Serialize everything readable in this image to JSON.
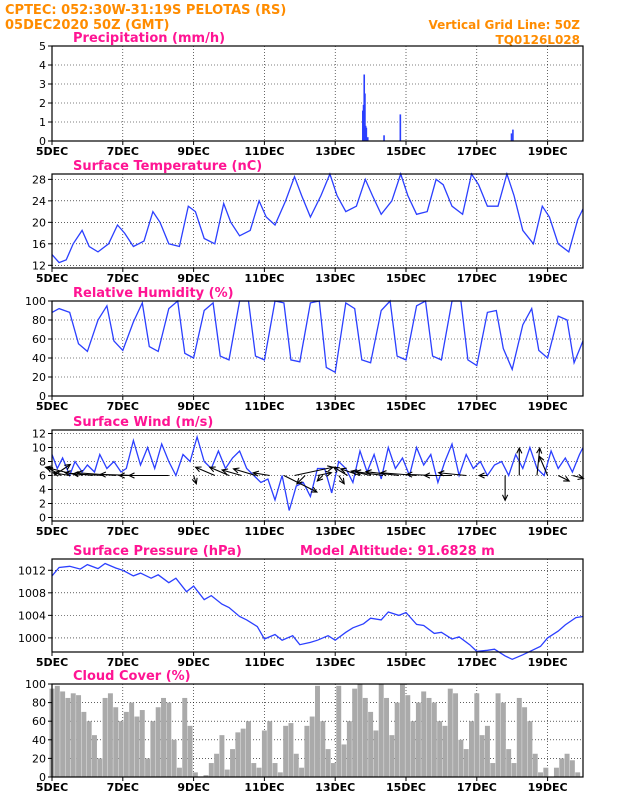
{
  "header": {
    "line1": "CPTEC:   052:30W-31:19S   PELOTAS (RS)",
    "line2": "05DEC2020 50Z (GMT)",
    "grid_note": "Vertical Grid Line: 50Z",
    "code": "TQ0126L028"
  },
  "colors": {
    "header": "#ff8c00",
    "title": "#ff1493",
    "line": "#2b3fff",
    "cloud": "#aaaaaa",
    "arrow": "#000000"
  },
  "chart_data": [
    {
      "type": "bar",
      "title": "Precipitation (mm/h)",
      "ylim": [
        0,
        5
      ],
      "yticks": [
        0,
        1,
        2,
        3,
        4,
        5
      ],
      "x_tick_labels": [
        "5DEC",
        "7DEC",
        "9DEC",
        "11DEC",
        "13DEC",
        "15DEC",
        "17DEC",
        "19DEC"
      ],
      "x_range_days": [
        5,
        20
      ],
      "series": [
        {
          "x": [
            13.78,
            13.8,
            13.82,
            13.84,
            13.86,
            13.88,
            13.92,
            14.38,
            14.84,
            17.98,
            18.02
          ],
          "values": [
            1.6,
            1.9,
            3.5,
            2.5,
            0.8,
            0.7,
            0.2,
            0.3,
            1.4,
            0.4,
            0.6
          ]
        }
      ]
    },
    {
      "type": "line",
      "title": "Surface Temperature (nC)",
      "ylim": [
        11.5,
        29
      ],
      "yticks": [
        12,
        16,
        20,
        24,
        28
      ],
      "x_tick_labels": [
        "5DEC",
        "7DEC",
        "9DEC",
        "11DEC",
        "13DEC",
        "15DEC",
        "17DEC",
        "19DEC"
      ],
      "x_range_days": [
        5,
        20
      ],
      "series": [
        {
          "x": [
            5.0,
            5.2,
            5.4,
            5.6,
            5.85,
            6.05,
            6.3,
            6.6,
            6.85,
            7.05,
            7.3,
            7.6,
            7.85,
            8.05,
            8.3,
            8.6,
            8.85,
            9.05,
            9.3,
            9.6,
            9.85,
            10.05,
            10.3,
            10.6,
            10.85,
            11.05,
            11.3,
            11.6,
            11.85,
            12.05,
            12.3,
            12.6,
            12.85,
            13.05,
            13.3,
            13.6,
            13.85,
            14.05,
            14.3,
            14.6,
            14.85,
            15.05,
            15.3,
            15.6,
            15.85,
            16.05,
            16.3,
            16.6,
            16.85,
            17.05,
            17.3,
            17.6,
            17.85,
            18.05,
            18.3,
            18.6,
            18.85,
            19.05,
            19.3,
            19.6,
            19.85,
            20.0
          ],
          "values": [
            14,
            12.5,
            13,
            16,
            18.5,
            15.5,
            14.5,
            16,
            19.5,
            18,
            15.5,
            16.5,
            22,
            20,
            16,
            15.5,
            23,
            22,
            17,
            16,
            23.5,
            20,
            17.5,
            18.5,
            24,
            21,
            19.5,
            24,
            28.5,
            25,
            21,
            25,
            29,
            25,
            22,
            23,
            28,
            25,
            21.5,
            24,
            29,
            25,
            21.5,
            22,
            28,
            27,
            23,
            21.5,
            29,
            27,
            23,
            23,
            29,
            25,
            18.5,
            16,
            23,
            21,
            16,
            14.5,
            20.5,
            22.5
          ]
        }
      ]
    },
    {
      "type": "line",
      "title": "Relative Humidity (%)",
      "ylim": [
        0,
        100
      ],
      "yticks": [
        0,
        20,
        40,
        60,
        80,
        100
      ],
      "x_tick_labels": [
        "5DEC",
        "7DEC",
        "9DEC",
        "11DEC",
        "13DEC",
        "15DEC",
        "17DEC",
        "19DEC"
      ],
      "x_range_days": [
        5,
        20
      ],
      "series": [
        {
          "x": [
            5.0,
            5.2,
            5.5,
            5.75,
            6.0,
            6.3,
            6.55,
            6.75,
            7.0,
            7.3,
            7.55,
            7.75,
            8.0,
            8.3,
            8.55,
            8.75,
            9.0,
            9.3,
            9.55,
            9.75,
            10.0,
            10.3,
            10.55,
            10.75,
            11.0,
            11.3,
            11.55,
            11.75,
            12.0,
            12.3,
            12.55,
            12.75,
            13.0,
            13.3,
            13.55,
            13.75,
            14.0,
            14.3,
            14.55,
            14.75,
            15.0,
            15.3,
            15.55,
            15.75,
            16.0,
            16.3,
            16.55,
            16.75,
            17.0,
            17.3,
            17.55,
            17.75,
            18.0,
            18.3,
            18.55,
            18.75,
            19.0,
            19.3,
            19.55,
            19.75,
            20.0
          ],
          "values": [
            88,
            92,
            88,
            55,
            47,
            80,
            95,
            58,
            48,
            78,
            98,
            52,
            47,
            92,
            100,
            45,
            40,
            90,
            98,
            42,
            38,
            100,
            100,
            42,
            38,
            100,
            98,
            38,
            36,
            98,
            100,
            30,
            25,
            98,
            92,
            38,
            35,
            90,
            100,
            42,
            38,
            95,
            100,
            42,
            38,
            100,
            100,
            38,
            32,
            88,
            90,
            50,
            28,
            75,
            92,
            48,
            40,
            84,
            80,
            35,
            58
          ]
        }
      ]
    },
    {
      "type": "line",
      "title": "Surface Wind (m/s)",
      "ylim": [
        -0.5,
        12.5
      ],
      "yticks": [
        0,
        2,
        4,
        6,
        8,
        10,
        12
      ],
      "x_tick_labels": [
        "5DEC",
        "7DEC",
        "9DEC",
        "11DEC",
        "13DEC",
        "15DEC",
        "17DEC",
        "19DEC"
      ],
      "x_range_days": [
        5,
        20
      ],
      "series": [
        {
          "x": [
            5.0,
            5.15,
            5.3,
            5.5,
            5.65,
            5.85,
            6.0,
            6.2,
            6.35,
            6.55,
            6.75,
            6.95,
            7.1,
            7.3,
            7.5,
            7.7,
            7.9,
            8.1,
            8.3,
            8.5,
            8.7,
            8.9,
            9.1,
            9.3,
            9.5,
            9.7,
            9.9,
            10.1,
            10.3,
            10.5,
            10.7,
            10.9,
            11.1,
            11.3,
            11.5,
            11.7,
            11.9,
            12.1,
            12.3,
            12.5,
            12.7,
            12.9,
            13.1,
            13.3,
            13.5,
            13.7,
            13.9,
            14.1,
            14.3,
            14.5,
            14.7,
            14.9,
            15.1,
            15.3,
            15.5,
            15.7,
            15.9,
            16.1,
            16.3,
            16.5,
            16.7,
            16.9,
            17.1,
            17.3,
            17.5,
            17.7,
            17.9,
            18.1,
            18.3,
            18.5,
            18.7,
            18.9,
            19.1,
            19.3,
            19.5,
            19.7,
            19.9,
            20.0
          ],
          "values": [
            9,
            7,
            8.5,
            6,
            8,
            6.5,
            7.5,
            6.5,
            9,
            7,
            8,
            6.5,
            7,
            11,
            7.5,
            10,
            7,
            10.5,
            8,
            6,
            9,
            8,
            11.5,
            8,
            7,
            9.5,
            7,
            8.5,
            9.5,
            7,
            6,
            5,
            5.5,
            2.5,
            6,
            1,
            4.5,
            5,
            3,
            7,
            7,
            3.5,
            8,
            7,
            5,
            9.5,
            6.5,
            9,
            5.5,
            10,
            7,
            8.5,
            6,
            10,
            7.5,
            9,
            5,
            8,
            10.5,
            6,
            9,
            7,
            8,
            6,
            7.5,
            8,
            6,
            9,
            7,
            10,
            7,
            6,
            9.5,
            7,
            8.5,
            6.5,
            9,
            10
          ]
        }
      ],
      "wind_arrows": [
        {
          "x": 5.05,
          "u": 3.0,
          "v": 2.0
        },
        {
          "x": 5.25,
          "u": -2.5,
          "v": 1.5
        },
        {
          "x": 5.5,
          "u": -3.0,
          "v": 0.5
        },
        {
          "x": 5.75,
          "u": -6.0,
          "v": 1.5
        },
        {
          "x": 6.15,
          "u": -5.0,
          "v": 0.5
        },
        {
          "x": 6.45,
          "u": -5.5,
          "v": 0.3
        },
        {
          "x": 6.8,
          "u": -7.0,
          "v": 0.5
        },
        {
          "x": 7.3,
          "u": -6.0,
          "v": 0.2
        },
        {
          "x": 7.8,
          "u": -4.0,
          "v": 0.0
        },
        {
          "x": 8.3,
          "u": -9.0,
          "v": 0.0
        },
        {
          "x": 9.0,
          "u": 0.5,
          "v": -1.5
        },
        {
          "x": 9.6,
          "u": -3.5,
          "v": 1.5
        },
        {
          "x": 10.0,
          "u": -3.5,
          "v": 1.5
        },
        {
          "x": 10.35,
          "u": -3.5,
          "v": 1.0
        },
        {
          "x": 10.75,
          "u": -4.0,
          "v": 1.2
        },
        {
          "x": 11.15,
          "u": -3.0,
          "v": 0.5
        },
        {
          "x": 11.55,
          "u": 6.0,
          "v": -3.0
        },
        {
          "x": 11.85,
          "u": 7.0,
          "v": 1.5
        },
        {
          "x": 12.15,
          "u": -1.5,
          "v": -1.5
        },
        {
          "x": 12.5,
          "u": 2.5,
          "v": 0.5
        },
        {
          "x": 12.65,
          "u": -1.0,
          "v": -1.0
        },
        {
          "x": 13.1,
          "u": 1.0,
          "v": -1.5
        },
        {
          "x": 13.35,
          "u": -2.5,
          "v": 1.5
        },
        {
          "x": 13.7,
          "u": -3.5,
          "v": 1.2
        },
        {
          "x": 14.0,
          "u": -3.5,
          "v": 0.8
        },
        {
          "x": 14.35,
          "u": -5.0,
          "v": 0.7
        },
        {
          "x": 14.8,
          "u": -6.0,
          "v": 0.7
        },
        {
          "x": 15.3,
          "u": -6.5,
          "v": 0.5
        },
        {
          "x": 15.8,
          "u": -5.0,
          "v": 0.2
        },
        {
          "x": 16.3,
          "u": -5.0,
          "v": 0.0
        },
        {
          "x": 16.7,
          "u": -5.0,
          "v": 0.5
        },
        {
          "x": 17.3,
          "u": -1.5,
          "v": 0.0
        },
        {
          "x": 17.8,
          "u": 0.0,
          "v": -4.5
        },
        {
          "x": 18.2,
          "u": 0.0,
          "v": 5.0
        },
        {
          "x": 18.7,
          "u": 0.5,
          "v": 5.0
        },
        {
          "x": 19.0,
          "u": -1.5,
          "v": 3.5
        },
        {
          "x": 19.3,
          "u": 2.0,
          "v": -1.0
        },
        {
          "x": 19.7,
          "u": 2.0,
          "v": -0.5
        }
      ]
    },
    {
      "type": "line",
      "title": "Surface Pressure (hPa)",
      "annotation": "Model Altitude: 91.6828 m",
      "ylim": [
        997.5,
        1014
      ],
      "yticks": [
        1000,
        1004,
        1008,
        1012
      ],
      "x_tick_labels": [
        "5DEC",
        "7DEC",
        "9DEC",
        "11DEC",
        "13DEC",
        "15DEC",
        "17DEC",
        "19DEC"
      ],
      "x_range_days": [
        5,
        20
      ],
      "series": [
        {
          "x": [
            5.0,
            5.2,
            5.5,
            5.8,
            6.0,
            6.3,
            6.5,
            6.8,
            7.0,
            7.3,
            7.5,
            7.8,
            8.0,
            8.3,
            8.5,
            8.8,
            9.0,
            9.3,
            9.5,
            9.8,
            10.0,
            10.3,
            10.5,
            10.8,
            11.0,
            11.3,
            11.5,
            11.8,
            12.0,
            12.3,
            12.5,
            12.8,
            13.0,
            13.3,
            13.5,
            13.8,
            14.0,
            14.3,
            14.5,
            14.8,
            15.0,
            15.3,
            15.5,
            15.8,
            16.0,
            16.3,
            16.5,
            16.8,
            17.0,
            17.3,
            17.5,
            17.8,
            18.0,
            18.3,
            18.5,
            18.8,
            19.0,
            19.3,
            19.5,
            19.8,
            20.0
          ],
          "values": [
            1011,
            1012.5,
            1012.7,
            1012.2,
            1013,
            1012.3,
            1013.2,
            1012.4,
            1012,
            1011,
            1011.5,
            1010.6,
            1011.2,
            1009.8,
            1010.6,
            1008.2,
            1009.2,
            1006.8,
            1007.5,
            1006,
            1005.4,
            1003.8,
            1003.2,
            1002,
            999.8,
            1000.6,
            999.6,
            1000.4,
            998.8,
            999.2,
            999.6,
            1000.4,
            999.6,
            1001,
            1001.8,
            1002.5,
            1003.5,
            1003.2,
            1004.6,
            1004,
            1004.5,
            1002.4,
            1002.2,
            1000.8,
            1001,
            999.8,
            1000.2,
            998.8,
            997.6,
            997.8,
            998,
            996.8,
            996.2,
            997,
            997.6,
            998.5,
            1000,
            1001.2,
            1002.3,
            1003.6,
            1003.8
          ]
        }
      ]
    },
    {
      "type": "bar",
      "title": "Cloud Cover (%)",
      "ylim": [
        0,
        100
      ],
      "yticks": [
        0,
        20,
        40,
        60,
        80,
        100
      ],
      "x_tick_labels": [
        "5DEC",
        "7DEC",
        "9DEC",
        "11DEC",
        "13DEC",
        "15DEC",
        "17DEC",
        "19DEC"
      ],
      "x_range_days": [
        5,
        20
      ],
      "series": [
        {
          "x": [
            5.0,
            5.15,
            5.3,
            5.45,
            5.6,
            5.75,
            5.9,
            6.05,
            6.2,
            6.35,
            6.5,
            6.65,
            6.8,
            6.95,
            7.1,
            7.25,
            7.4,
            7.55,
            7.7,
            7.85,
            8.0,
            8.15,
            8.3,
            8.45,
            8.6,
            8.75,
            8.9,
            9.05,
            9.2,
            9.35,
            9.5,
            9.65,
            9.8,
            9.95,
            10.1,
            10.25,
            10.4,
            10.55,
            10.7,
            10.85,
            11.0,
            11.15,
            11.3,
            11.45,
            11.6,
            11.75,
            11.9,
            12.05,
            12.2,
            12.35,
            12.5,
            12.65,
            12.8,
            12.95,
            13.1,
            13.25,
            13.4,
            13.55,
            13.7,
            13.85,
            14.0,
            14.15,
            14.3,
            14.45,
            14.6,
            14.75,
            14.9,
            15.05,
            15.2,
            15.35,
            15.5,
            15.65,
            15.8,
            15.95,
            16.1,
            16.25,
            16.4,
            16.55,
            16.7,
            16.85,
            17.0,
            17.15,
            17.3,
            17.45,
            17.6,
            17.75,
            17.9,
            18.05,
            18.2,
            18.35,
            18.5,
            18.65,
            18.8,
            18.95,
            19.1,
            19.25,
            19.4,
            19.55,
            19.7,
            19.85
          ],
          "values": [
            95,
            98,
            92,
            85,
            90,
            88,
            70,
            60,
            45,
            20,
            85,
            90,
            75,
            60,
            70,
            80,
            65,
            72,
            20,
            60,
            75,
            85,
            80,
            40,
            10,
            85,
            55,
            5,
            0,
            2,
            15,
            25,
            45,
            8,
            30,
            48,
            52,
            60,
            15,
            10,
            50,
            60,
            15,
            5,
            55,
            58,
            25,
            10,
            55,
            65,
            98,
            60,
            30,
            15,
            98,
            35,
            60,
            95,
            100,
            85,
            70,
            50,
            100,
            85,
            45,
            80,
            100,
            88,
            60,
            80,
            92,
            85,
            80,
            60,
            55,
            95,
            90,
            40,
            30,
            60,
            90,
            45,
            55,
            15,
            90,
            80,
            30,
            15,
            85,
            75,
            60,
            25,
            5,
            10,
            0,
            10,
            20,
            25,
            18,
            5
          ]
        }
      ]
    }
  ]
}
